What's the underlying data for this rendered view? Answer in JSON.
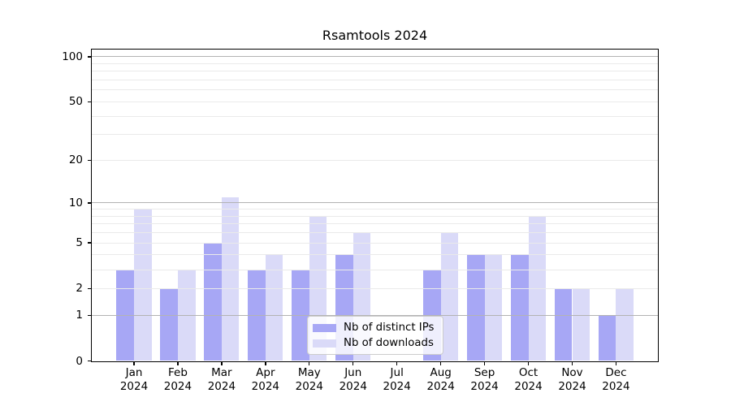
{
  "chart_data": {
    "type": "bar",
    "title": "Rsamtools 2024",
    "categories": [
      "Jan 2024",
      "Feb 2024",
      "Mar 2024",
      "Apr 2024",
      "May 2024",
      "Jun 2024",
      "Jul 2024",
      "Aug 2024",
      "Sep 2024",
      "Oct 2024",
      "Nov 2024",
      "Dec 2024"
    ],
    "series": [
      {
        "name": "Nb of distinct IPs",
        "color": "#a7a7f5",
        "values": [
          3,
          2,
          5,
          3,
          3,
          4,
          0,
          3,
          4,
          4,
          2,
          1
        ]
      },
      {
        "name": "Nb of downloads",
        "color": "#dadaf8",
        "values": [
          9,
          3,
          11,
          4,
          8,
          6,
          0,
          6,
          4,
          8,
          2,
          2
        ]
      }
    ],
    "xlabel": "",
    "ylabel": "",
    "y_axis": {
      "scale": "log1p",
      "tick_values": [
        0,
        1,
        2,
        5,
        10,
        20,
        50,
        100
      ],
      "tick_labels": [
        "0",
        "1",
        "2",
        "5",
        "10",
        "20",
        "50",
        "100"
      ],
      "major_gridlines": [
        1,
        10,
        100
      ],
      "minor_gridlines": [
        2,
        3,
        4,
        5,
        6,
        7,
        8,
        9,
        20,
        30,
        40,
        50,
        60,
        70,
        80,
        90
      ],
      "ylim": [
        0,
        110
      ]
    },
    "grid": "horizontal",
    "legend_position": "bottom-center"
  },
  "legend": {
    "items": [
      {
        "label": "Nb of distinct IPs",
        "color": "#a7a7f5"
      },
      {
        "label": "Nb of downloads",
        "color": "#dadaf8"
      }
    ]
  },
  "colors": {
    "background": "#ffffff",
    "bar_distinct_ips": "#a7a7f5",
    "bar_downloads": "#dadaf8",
    "gridline_major": "#b3b3b3",
    "gridline_minor": "#eaeaea",
    "axis_frame": "#000000",
    "text": "#000000",
    "legend_border": "#cccccc"
  }
}
